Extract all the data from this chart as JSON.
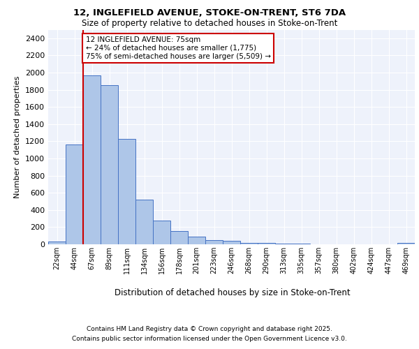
{
  "title_line1": "12, INGLEFIELD AVENUE, STOKE-ON-TRENT, ST6 7DA",
  "title_line2": "Size of property relative to detached houses in Stoke-on-Trent",
  "xlabel": "Distribution of detached houses by size in Stoke-on-Trent",
  "ylabel": "Number of detached properties",
  "bin_labels": [
    "22sqm",
    "44sqm",
    "67sqm",
    "89sqm",
    "111sqm",
    "134sqm",
    "156sqm",
    "178sqm",
    "201sqm",
    "223sqm",
    "246sqm",
    "268sqm",
    "290sqm",
    "313sqm",
    "335sqm",
    "357sqm",
    "380sqm",
    "402sqm",
    "424sqm",
    "447sqm",
    "469sqm"
  ],
  "bar_heights": [
    30,
    1160,
    1970,
    1850,
    1230,
    520,
    280,
    155,
    90,
    45,
    38,
    20,
    15,
    8,
    5,
    4,
    3,
    2,
    2,
    1,
    15
  ],
  "bar_color": "#aec6e8",
  "bar_edge_color": "#4472c4",
  "background_color": "#eef2fb",
  "grid_color": "#ffffff",
  "red_line_index": 2,
  "annotation_text": "12 INGLEFIELD AVENUE: 75sqm\n← 24% of detached houses are smaller (1,775)\n75% of semi-detached houses are larger (5,509) →",
  "annotation_box_color": "#ffffff",
  "annotation_box_edge_color": "#cc0000",
  "ylim": [
    0,
    2500
  ],
  "yticks": [
    0,
    200,
    400,
    600,
    800,
    1000,
    1200,
    1400,
    1600,
    1800,
    2000,
    2200,
    2400
  ],
  "footer_line1": "Contains HM Land Registry data © Crown copyright and database right 2025.",
  "footer_line2": "Contains public sector information licensed under the Open Government Licence v3.0."
}
